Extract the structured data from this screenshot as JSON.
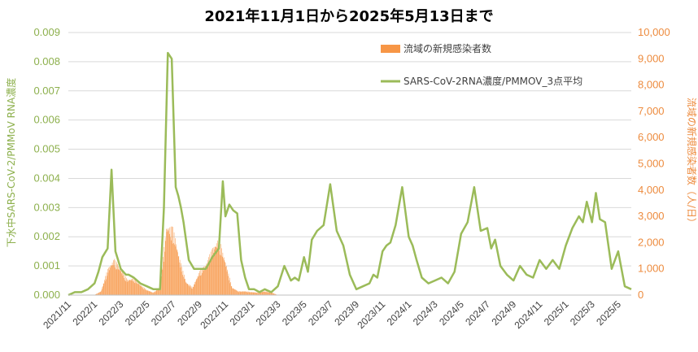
{
  "chart_data": {
    "type": "bar+line",
    "title": "2021年11月1日から2025年5月13日まで",
    "y_left": {
      "label": "下水中SARS-CoV-2/PMMoV RNA濃度",
      "range": [
        0,
        0.009
      ],
      "ticks": [
        "0.000",
        "0.001",
        "0.002",
        "0.003",
        "0.004",
        "0.005",
        "0.006",
        "0.007",
        "0.008",
        "0.009"
      ],
      "color": "#8DB04D"
    },
    "y_right": {
      "label": "流域の新規感染者数（人/日）",
      "range": [
        0,
        10000
      ],
      "ticks": [
        "0",
        "1,000",
        "2,000",
        "3,000",
        "4,000",
        "5,000",
        "6,000",
        "7,000",
        "8,000",
        "9,000",
        "10,000"
      ],
      "color": "#ED8B3E"
    },
    "x_axis": {
      "range_months": [
        0,
        43
      ],
      "tick_labels": [
        "2021/11",
        "2022/1",
        "2022/3",
        "2022/5",
        "2022/7",
        "2022/9",
        "2022/11",
        "2023/1",
        "2023/3",
        "2023/5",
        "2023/7",
        "2023/9",
        "2023/11",
        "2024/1",
        "2024/3",
        "2024/5",
        "2024/7",
        "2024/9",
        "2024/11",
        "2025/1",
        "2025/3",
        "2025/5"
      ]
    },
    "grid": true,
    "legend_position": "top-center",
    "series": [
      {
        "name": "流域の新規感染者数",
        "kind": "bar",
        "axis": "right",
        "color": "#F79646",
        "x": [
          0,
          1,
          2,
          2.5,
          3,
          3.5,
          4,
          4.5,
          5,
          5.5,
          6,
          6.5,
          7,
          7.5,
          8,
          8.5,
          9,
          9.5,
          10,
          10.5,
          11,
          11.5,
          12,
          12.5,
          13,
          13.5,
          14,
          14.5,
          15,
          15.5,
          16,
          16.5,
          17,
          17.5,
          18,
          18.5,
          19
        ],
        "values": [
          0,
          0,
          10,
          150,
          1000,
          1400,
          1000,
          600,
          650,
          400,
          200,
          100,
          300,
          2700,
          2600,
          1400,
          500,
          300,
          900,
          1200,
          1800,
          2200,
          1300,
          300,
          150,
          150,
          120,
          100,
          150,
          110,
          0,
          0,
          0,
          0,
          0,
          0,
          0
        ]
      },
      {
        "name": "SARS-CoV-2RNA濃度/PMMOV_3点平均",
        "kind": "line",
        "axis": "left",
        "color": "#9BBB59",
        "x": [
          0,
          0.5,
          1,
          1.5,
          2,
          2.3,
          2.6,
          3,
          3.3,
          3.6,
          3.8,
          4,
          4.2,
          4.4,
          4.6,
          5,
          5.5,
          6,
          6.5,
          7,
          7.3,
          7.6,
          7.9,
          8.2,
          8.4,
          8.6,
          8.8,
          9.2,
          9.6,
          10,
          10.5,
          11,
          11.5,
          11.8,
          12,
          12.3,
          12.6,
          12.9,
          13.2,
          13.5,
          13.8,
          14.2,
          14.6,
          15,
          15.5,
          16,
          16.5,
          17,
          17.3,
          17.6,
          18,
          18.3,
          18.6,
          19,
          19.5,
          20,
          20.5,
          21,
          21.5,
          22,
          22.5,
          23,
          23.3,
          23.6,
          24,
          24.3,
          24.6,
          25,
          25.5,
          26,
          26.3,
          26.6,
          27,
          27.5,
          28,
          28.5,
          29,
          29.5,
          30,
          30.5,
          31,
          31.5,
          32,
          32.3,
          32.6,
          33,
          33.5,
          34,
          34.5,
          35,
          35.5,
          36,
          36.5,
          37,
          37.5,
          38,
          38.5,
          39,
          39.3,
          39.6,
          40,
          40.3,
          40.6,
          41,
          41.5,
          42,
          42.5,
          43
        ],
        "values": [
          0.0,
          0.0001,
          0.0001,
          0.0002,
          0.0004,
          0.0008,
          0.0013,
          0.0016,
          0.0043,
          0.0015,
          0.0012,
          0.0009,
          0.0008,
          0.0007,
          0.0007,
          0.0006,
          0.0004,
          0.0003,
          0.0002,
          0.0002,
          0.003,
          0.0083,
          0.0081,
          0.0037,
          0.0034,
          0.003,
          0.0025,
          0.0012,
          0.0009,
          0.0009,
          0.0009,
          0.0013,
          0.0016,
          0.0039,
          0.0027,
          0.0031,
          0.0029,
          0.0028,
          0.0012,
          0.0006,
          0.0002,
          0.0002,
          0.0001,
          0.0002,
          0.0001,
          0.0003,
          0.001,
          0.0005,
          0.0006,
          0.0005,
          0.0013,
          0.0008,
          0.0019,
          0.0022,
          0.0024,
          0.0038,
          0.0022,
          0.0017,
          0.0007,
          0.0002,
          0.0003,
          0.0004,
          0.0007,
          0.0006,
          0.0015,
          0.0017,
          0.0018,
          0.0024,
          0.0037,
          0.002,
          0.0017,
          0.0012,
          0.0006,
          0.0004,
          0.0005,
          0.0006,
          0.0004,
          0.0008,
          0.0021,
          0.0025,
          0.0037,
          0.0022,
          0.0023,
          0.0016,
          0.0019,
          0.001,
          0.0007,
          0.0005,
          0.001,
          0.0007,
          0.0006,
          0.0012,
          0.0009,
          0.0012,
          0.0009,
          0.0017,
          0.0023,
          0.0027,
          0.0025,
          0.0032,
          0.0025,
          0.0035,
          0.0026,
          0.0025,
          0.0009,
          0.0015,
          0.0003,
          0.0002
        ]
      }
    ]
  }
}
